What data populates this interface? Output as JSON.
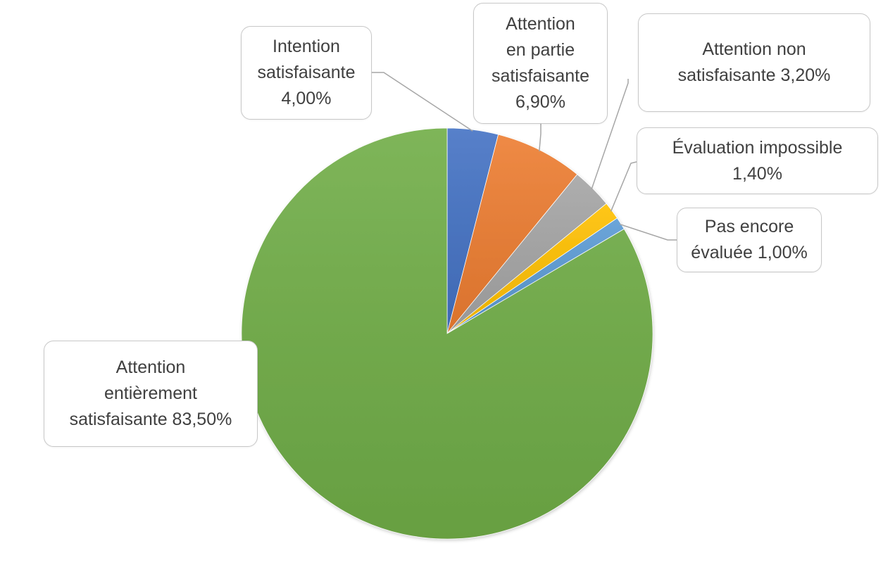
{
  "chart_data": {
    "type": "pie",
    "unit": "%",
    "start_angle_deg": 0,
    "direction": "clockwise",
    "slices": [
      {
        "label": "Intention satisfaisante",
        "value": 4.0,
        "label_text": "Intention\nsatisfaisante\n4,00%",
        "color": "#4472C4"
      },
      {
        "label": "Attention en partie satisfaisante",
        "value": 6.9,
        "label_text": "Attention\nen partie\nsatisfaisante\n6,90%",
        "color": "#ED7D31"
      },
      {
        "label": "Attention non satisfaisante",
        "value": 3.2,
        "label_text": "Attention non\nsatisfaisante 3,20%",
        "color": "#A5A5A5"
      },
      {
        "label": "Évaluation impossible",
        "value": 1.4,
        "label_text": "Évaluation impossible\n1,40%",
        "color": "#FFC000"
      },
      {
        "label": "Pas encore évaluée",
        "value": 1.0,
        "label_text": "Pas encore\névaluée 1,00%",
        "color": "#5B9BD5"
      },
      {
        "label": "Attention entièrement satisfaisante",
        "value": 83.5,
        "label_text": "Attention\nentièrement\nsatisfaisante 83,50%",
        "color": "#70AD47"
      }
    ],
    "data_labels": "callouts",
    "legend": "none"
  }
}
